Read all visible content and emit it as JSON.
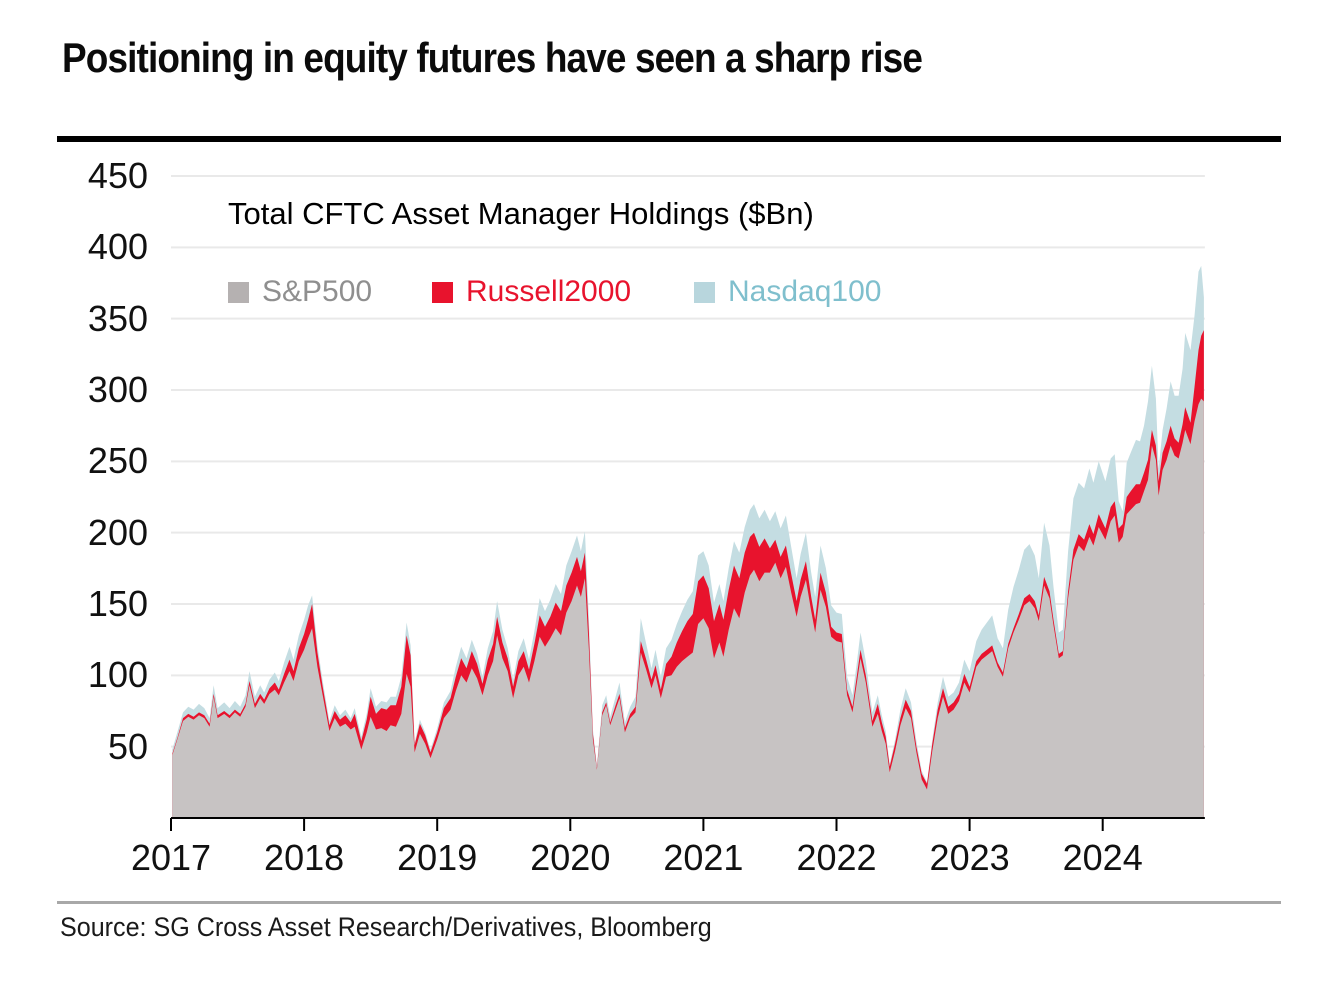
{
  "page": {
    "title": "Positioning in equity futures have seen a sharp rise",
    "source": "Source: SG Cross Asset Research/Derivatives, Bloomberg"
  },
  "chart_data": {
    "type": "area",
    "stacked": true,
    "title": "Total CFTC Asset Manager Holdings ($Bn)",
    "ylabel": "",
    "xlabel": "",
    "ylim": [
      0,
      450
    ],
    "y_ticks": [
      50,
      100,
      150,
      200,
      250,
      300,
      350,
      400,
      450
    ],
    "x_ticks": [
      "2017",
      "2018",
      "2019",
      "2020",
      "2021",
      "2022",
      "2023",
      "2024"
    ],
    "grid": true,
    "legend_position": "top-left",
    "colors": {
      "grid": "#e9e9e9",
      "axis": "#000000"
    },
    "legend": [
      {
        "label": "S&P500",
        "area_color": "#c7c3c3",
        "marker_color": "#b5b1b1",
        "text_color": "#8f8f8f"
      },
      {
        "label": "Russell2000",
        "area_color": "#e8132d",
        "marker_color": "#e8132d",
        "text_color": "#e8132d"
      },
      {
        "label": "Nasdaq100",
        "area_color": "#c4dde2",
        "marker_color": "#b8d6dd",
        "text_color": "#7fbfcd"
      }
    ],
    "series_names": [
      "S&P500",
      "Russell2000",
      "Nasdaq100"
    ],
    "points_format": [
      "years_since_2017",
      "sp500_bn",
      "russell2000_bn",
      "nasdaq100_bn"
    ],
    "points": [
      [
        0.01,
        44,
        1,
        3
      ],
      [
        0.05,
        56,
        1,
        4
      ],
      [
        0.09,
        68,
        2,
        4
      ],
      [
        0.13,
        71,
        2,
        5
      ],
      [
        0.17,
        69,
        2,
        5
      ],
      [
        0.21,
        72,
        2,
        6
      ],
      [
        0.25,
        70,
        2,
        5
      ],
      [
        0.29,
        64,
        2,
        4
      ],
      [
        0.32,
        85,
        2,
        6
      ],
      [
        0.35,
        70,
        2,
        5
      ],
      [
        0.4,
        73,
        2,
        6
      ],
      [
        0.44,
        70,
        2,
        5
      ],
      [
        0.48,
        74,
        2,
        6
      ],
      [
        0.52,
        71,
        2,
        5
      ],
      [
        0.56,
        78,
        2,
        6
      ],
      [
        0.59,
        93,
        3,
        7
      ],
      [
        0.63,
        77,
        3,
        5
      ],
      [
        0.67,
        84,
        3,
        6
      ],
      [
        0.7,
        80,
        3,
        5
      ],
      [
        0.74,
        87,
        4,
        6
      ],
      [
        0.78,
        90,
        5,
        7
      ],
      [
        0.81,
        86,
        4,
        6
      ],
      [
        0.85,
        95,
        6,
        8
      ],
      [
        0.89,
        103,
        8,
        9
      ],
      [
        0.92,
        96,
        7,
        8
      ],
      [
        0.96,
        110,
        9,
        9
      ],
      [
        1.0,
        118,
        11,
        10
      ],
      [
        1.03,
        126,
        13,
        10
      ],
      [
        1.06,
        133,
        17,
        6
      ],
      [
        1.1,
        106,
        10,
        5
      ],
      [
        1.14,
        86,
        6,
        4
      ],
      [
        1.19,
        61,
        4,
        3
      ],
      [
        1.23,
        70,
        5,
        4
      ],
      [
        1.27,
        64,
        5,
        3
      ],
      [
        1.31,
        66,
        6,
        4
      ],
      [
        1.35,
        62,
        5,
        3
      ],
      [
        1.38,
        64,
        9,
        4
      ],
      [
        1.43,
        48,
        6,
        3
      ],
      [
        1.47,
        60,
        9,
        4
      ],
      [
        1.5,
        71,
        14,
        6
      ],
      [
        1.54,
        62,
        11,
        5
      ],
      [
        1.58,
        63,
        14,
        5
      ],
      [
        1.62,
        61,
        15,
        5
      ],
      [
        1.65,
        65,
        14,
        6
      ],
      [
        1.69,
        64,
        15,
        6
      ],
      [
        1.73,
        73,
        19,
        7
      ],
      [
        1.77,
        101,
        27,
        9
      ],
      [
        1.8,
        92,
        22,
        7
      ],
      [
        1.83,
        46,
        5,
        2
      ],
      [
        1.87,
        59,
        7,
        3
      ],
      [
        1.91,
        52,
        6,
        2
      ],
      [
        1.95,
        42,
        4,
        2
      ],
      [
        2.0,
        55,
        5,
        3
      ],
      [
        2.05,
        70,
        7,
        4
      ],
      [
        2.1,
        76,
        8,
        5
      ],
      [
        2.14,
        89,
        10,
        7
      ],
      [
        2.18,
        100,
        12,
        8
      ],
      [
        2.22,
        95,
        10,
        7
      ],
      [
        2.26,
        105,
        12,
        8
      ],
      [
        2.3,
        98,
        10,
        7
      ],
      [
        2.34,
        86,
        8,
        5
      ],
      [
        2.38,
        100,
        11,
        8
      ],
      [
        2.42,
        110,
        12,
        9
      ],
      [
        2.45,
        128,
        13,
        11
      ],
      [
        2.49,
        112,
        11,
        9
      ],
      [
        2.53,
        103,
        9,
        7
      ],
      [
        2.57,
        84,
        8,
        5
      ],
      [
        2.61,
        100,
        10,
        7
      ],
      [
        2.65,
        106,
        11,
        9
      ],
      [
        2.69,
        95,
        9,
        7
      ],
      [
        2.73,
        110,
        12,
        9
      ],
      [
        2.77,
        127,
        15,
        12
      ],
      [
        2.81,
        120,
        14,
        11
      ],
      [
        2.85,
        126,
        15,
        12
      ],
      [
        2.89,
        133,
        18,
        13
      ],
      [
        2.93,
        128,
        17,
        12
      ],
      [
        2.97,
        144,
        19,
        14
      ],
      [
        3.01,
        152,
        20,
        15
      ],
      [
        3.05,
        163,
        20,
        15
      ],
      [
        3.08,
        155,
        18,
        14
      ],
      [
        3.11,
        168,
        18,
        15
      ],
      [
        3.14,
        118,
        12,
        10
      ],
      [
        3.17,
        55,
        4,
        3
      ],
      [
        3.2,
        34,
        1,
        2
      ],
      [
        3.24,
        72,
        2,
        5
      ],
      [
        3.27,
        79,
        2,
        5
      ],
      [
        3.3,
        65,
        2,
        4
      ],
      [
        3.34,
        76,
        3,
        6
      ],
      [
        3.37,
        84,
        3,
        8
      ],
      [
        3.41,
        60,
        3,
        4
      ],
      [
        3.45,
        70,
        3,
        5
      ],
      [
        3.49,
        74,
        4,
        7
      ],
      [
        3.53,
        116,
        8,
        16
      ],
      [
        3.57,
        104,
        7,
        11
      ],
      [
        3.61,
        91,
        6,
        8
      ],
      [
        3.64,
        100,
        7,
        11
      ],
      [
        3.68,
        84,
        6,
        9
      ],
      [
        3.72,
        99,
        9,
        11
      ],
      [
        3.76,
        100,
        13,
        12
      ],
      [
        3.8,
        106,
        17,
        13
      ],
      [
        3.84,
        110,
        21,
        14
      ],
      [
        3.88,
        113,
        25,
        15
      ],
      [
        3.92,
        116,
        27,
        16
      ],
      [
        3.96,
        136,
        30,
        18
      ],
      [
        4.0,
        140,
        30,
        17
      ],
      [
        4.04,
        133,
        28,
        16
      ],
      [
        4.08,
        112,
        26,
        13
      ],
      [
        4.12,
        123,
        27,
        14
      ],
      [
        4.15,
        113,
        26,
        13
      ],
      [
        4.19,
        132,
        28,
        15
      ],
      [
        4.23,
        147,
        30,
        17
      ],
      [
        4.27,
        140,
        28,
        18
      ],
      [
        4.31,
        158,
        28,
        18
      ],
      [
        4.35,
        170,
        27,
        19
      ],
      [
        4.38,
        174,
        26,
        20
      ],
      [
        4.42,
        166,
        24,
        20
      ],
      [
        4.46,
        172,
        24,
        20
      ],
      [
        4.5,
        172,
        17,
        19
      ],
      [
        4.54,
        179,
        16,
        20
      ],
      [
        4.58,
        168,
        15,
        20
      ],
      [
        4.62,
        176,
        15,
        21
      ],
      [
        4.66,
        158,
        13,
        19
      ],
      [
        4.7,
        141,
        11,
        16
      ],
      [
        4.73,
        155,
        12,
        18
      ],
      [
        4.77,
        167,
        13,
        20
      ],
      [
        4.81,
        145,
        10,
        17
      ],
      [
        4.84,
        130,
        9,
        16
      ],
      [
        4.88,
        160,
        12,
        19
      ],
      [
        4.92,
        148,
        10,
        17
      ],
      [
        4.96,
        127,
        7,
        15
      ],
      [
        5.0,
        124,
        6,
        14
      ],
      [
        5.04,
        123,
        6,
        14
      ],
      [
        5.08,
        86,
        4,
        9
      ],
      [
        5.12,
        74,
        4,
        8
      ],
      [
        5.15,
        93,
        5,
        9
      ],
      [
        5.18,
        112,
        6,
        12
      ],
      [
        5.22,
        95,
        5,
        10
      ],
      [
        5.27,
        64,
        4,
        6
      ],
      [
        5.31,
        73,
        7,
        6
      ],
      [
        5.34,
        61,
        6,
        5
      ],
      [
        5.37,
        52,
        5,
        4
      ],
      [
        5.4,
        32,
        4,
        2
      ],
      [
        5.44,
        47,
        5,
        3
      ],
      [
        5.48,
        65,
        5,
        6
      ],
      [
        5.52,
        77,
        6,
        8
      ],
      [
        5.56,
        70,
        5,
        6
      ],
      [
        5.6,
        46,
        4,
        4
      ],
      [
        5.64,
        27,
        4,
        2
      ],
      [
        5.68,
        20,
        4,
        1
      ],
      [
        5.72,
        47,
        5,
        3
      ],
      [
        5.76,
        70,
        6,
        5
      ],
      [
        5.8,
        85,
        6,
        8
      ],
      [
        5.84,
        73,
        5,
        7
      ],
      [
        5.88,
        76,
        5,
        7
      ],
      [
        5.92,
        82,
        5,
        8
      ],
      [
        5.96,
        95,
        6,
        10
      ],
      [
        6.0,
        88,
        4,
        11
      ],
      [
        6.05,
        106,
        4,
        14
      ],
      [
        6.09,
        111,
        4,
        17
      ],
      [
        6.13,
        114,
        4,
        19
      ],
      [
        6.17,
        117,
        4,
        21
      ],
      [
        6.21,
        106,
        3,
        17
      ],
      [
        6.25,
        99,
        3,
        17
      ],
      [
        6.29,
        119,
        3,
        24
      ],
      [
        6.33,
        130,
        3,
        29
      ],
      [
        6.37,
        139,
        4,
        31
      ],
      [
        6.41,
        149,
        5,
        34
      ],
      [
        6.45,
        152,
        5,
        35
      ],
      [
        6.49,
        147,
        5,
        32
      ],
      [
        6.52,
        138,
        4,
        26
      ],
      [
        6.56,
        163,
        6,
        38
      ],
      [
        6.6,
        154,
        5,
        32
      ],
      [
        6.63,
        135,
        4,
        23
      ],
      [
        6.67,
        112,
        3,
        15
      ],
      [
        6.7,
        114,
        3,
        15
      ],
      [
        6.74,
        154,
        5,
        28
      ],
      [
        6.78,
        181,
        7,
        36
      ],
      [
        6.82,
        191,
        8,
        36
      ],
      [
        6.86,
        187,
        8,
        36
      ],
      [
        6.9,
        197,
        9,
        39
      ],
      [
        6.93,
        191,
        8,
        36
      ],
      [
        6.97,
        204,
        9,
        37
      ],
      [
        7.02,
        195,
        8,
        33
      ],
      [
        7.06,
        208,
        10,
        34
      ],
      [
        7.09,
        212,
        10,
        33
      ],
      [
        7.12,
        193,
        10,
        19
      ],
      [
        7.15,
        197,
        9,
        9
      ],
      [
        7.18,
        213,
        12,
        24
      ],
      [
        7.21,
        216,
        13,
        27
      ],
      [
        7.25,
        220,
        14,
        31
      ],
      [
        7.28,
        221,
        13,
        30
      ],
      [
        7.31,
        229,
        13,
        33
      ],
      [
        7.34,
        237,
        14,
        41
      ],
      [
        7.37,
        261,
        11,
        45
      ],
      [
        7.4,
        251,
        10,
        33
      ],
      [
        7.42,
        226,
        10,
        9
      ],
      [
        7.45,
        244,
        12,
        16
      ],
      [
        7.48,
        251,
        13,
        23
      ],
      [
        7.51,
        261,
        14,
        31
      ],
      [
        7.54,
        254,
        12,
        30
      ],
      [
        7.57,
        252,
        11,
        33
      ],
      [
        7.6,
        263,
        13,
        39
      ],
      [
        7.62,
        272,
        16,
        52
      ],
      [
        7.66,
        262,
        15,
        51
      ],
      [
        7.69,
        278,
        24,
        50
      ],
      [
        7.72,
        290,
        38,
        55
      ],
      [
        7.74,
        294,
        44,
        49
      ],
      [
        7.76,
        292,
        50,
        23
      ]
    ]
  }
}
